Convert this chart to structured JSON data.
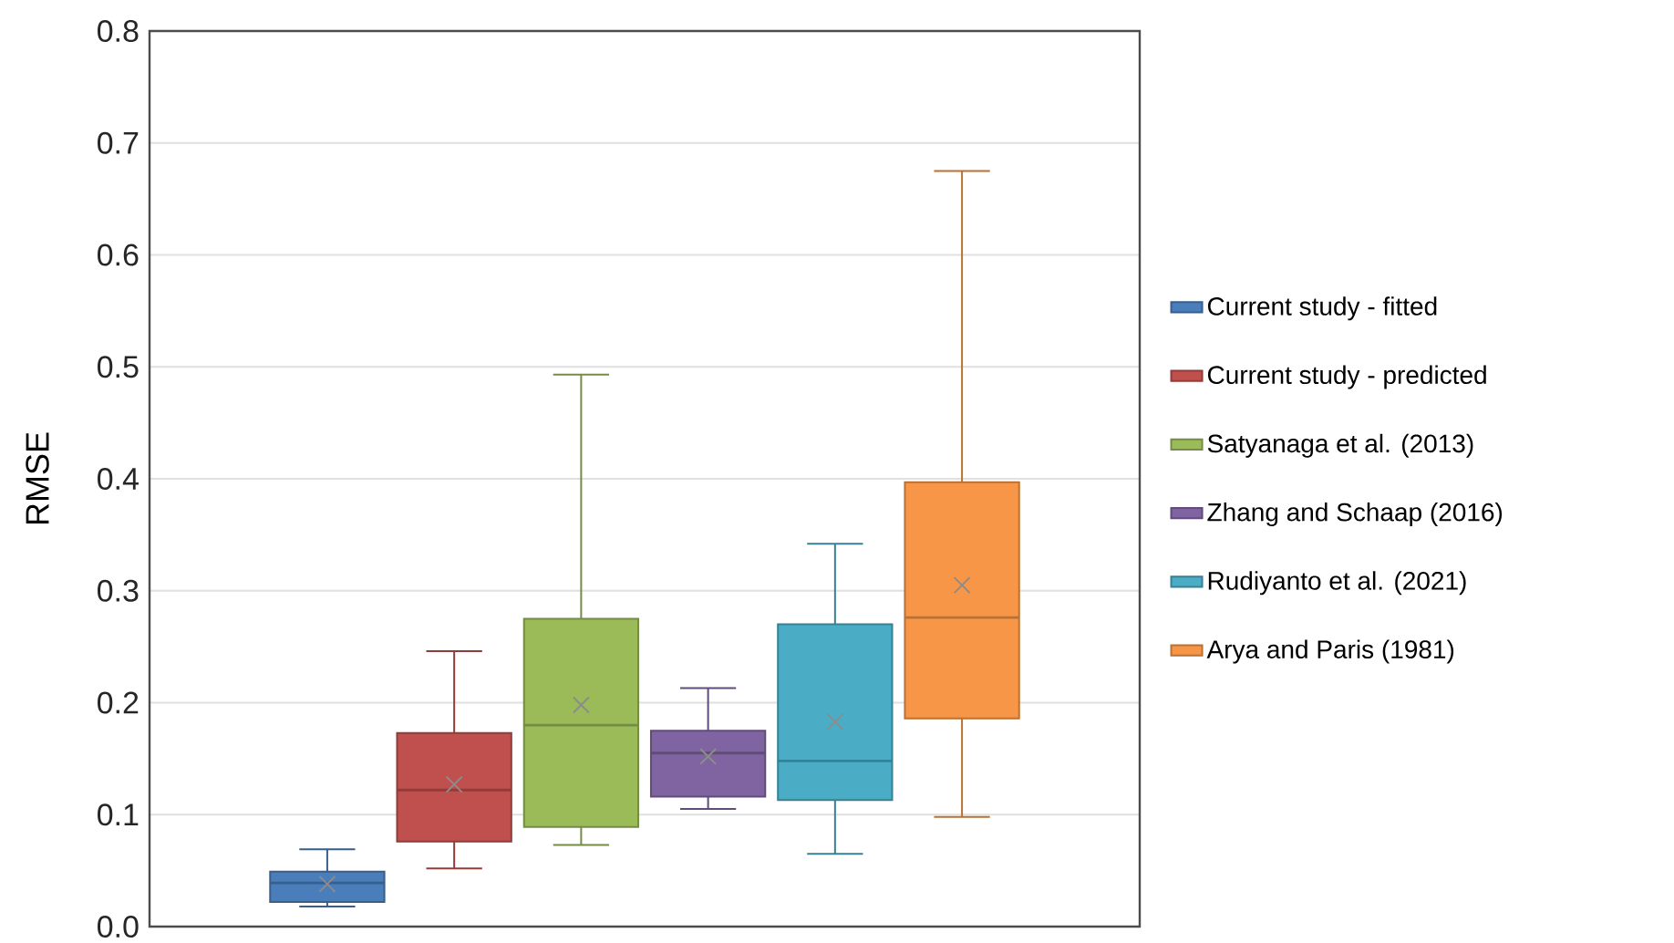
{
  "chart_data": {
    "type": "box",
    "ylabel": "RMSE",
    "categories": [
      null
    ],
    "ylim": [
      0,
      0.8
    ],
    "yticks": [
      {
        "value": 0,
        "label": "0.0"
      },
      {
        "value": 0.1,
        "label": "0.1"
      },
      {
        "value": 0.2,
        "label": "0.2"
      },
      {
        "value": 0.3,
        "label": "0.3"
      },
      {
        "value": 0.4,
        "label": "0.4"
      },
      {
        "value": 0.5,
        "label": "0.5"
      },
      {
        "value": 0.6,
        "label": "0.6"
      },
      {
        "value": 0.7,
        "label": "0.7"
      },
      {
        "value": 0.8,
        "label": "0.8"
      }
    ],
    "grid": "y",
    "legend": "right",
    "series": [
      {
        "name": "Current study - fitted",
        "color": "#4a7ebb",
        "boxes": [
          {
            "low": 0.018,
            "q1": 0.022,
            "median": 0.039,
            "q3": 0.049,
            "high": 0.069,
            "mean": 0.038
          }
        ]
      },
      {
        "name": "Current study - predicted",
        "color": "#c0504d",
        "boxes": [
          {
            "low": 0.052,
            "q1": 0.076,
            "median": 0.122,
            "q3": 0.173,
            "high": 0.246,
            "mean": 0.127
          }
        ]
      },
      {
        "name": "Satyanaga et al. (2013)",
        "color": "#9bbb59",
        "boxes": [
          {
            "low": 0.073,
            "q1": 0.089,
            "median": 0.18,
            "q3": 0.275,
            "high": 0.493,
            "mean": 0.198
          }
        ]
      },
      {
        "name": "Zhang and Schaap (2016)",
        "color": "#8064a2",
        "boxes": [
          {
            "low": 0.105,
            "q1": 0.116,
            "median": 0.155,
            "q3": 0.175,
            "high": 0.213,
            "mean": 0.152
          }
        ]
      },
      {
        "name": "Rudiyanto et al. (2021)",
        "color": "#4bacc6",
        "boxes": [
          {
            "low": 0.065,
            "q1": 0.113,
            "median": 0.148,
            "q3": 0.27,
            "high": 0.342,
            "mean": 0.183
          }
        ]
      },
      {
        "name": "Arya and Paris (1981)",
        "color": "#f79646",
        "boxes": [
          {
            "low": 0.098,
            "q1": 0.186,
            "median": 0.276,
            "q3": 0.397,
            "high": 0.675,
            "mean": 0.305
          }
        ]
      }
    ]
  }
}
